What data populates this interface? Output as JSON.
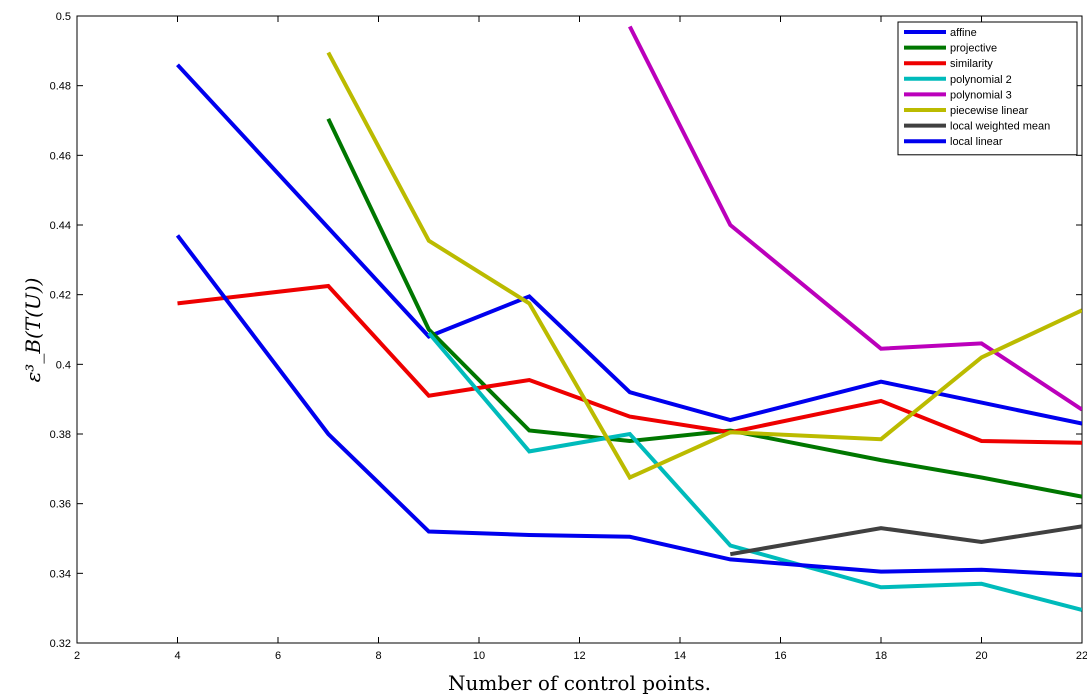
{
  "chart_data": {
    "type": "line",
    "title": "",
    "xlabel": "Number of control points.",
    "ylabel": "ε³_B(T(U))",
    "xlim": [
      2,
      22
    ],
    "ylim": [
      0.32,
      0.5
    ],
    "xticks": [
      2,
      4,
      6,
      8,
      10,
      12,
      14,
      16,
      18,
      20,
      22
    ],
    "yticks": [
      0.32,
      0.34,
      0.36,
      0.38,
      0.4,
      0.42,
      0.44,
      0.46,
      0.48,
      0.5
    ],
    "ytick_labels": [
      "0.32",
      "0.34",
      "0.36",
      "0.38",
      "0.4",
      "0.42",
      "0.44",
      "0.46",
      "0.48",
      "0.5"
    ],
    "grid": false,
    "legend_position": "top-right",
    "series": [
      {
        "name": "affine",
        "color": "#0000ee",
        "x": [
          4,
          9,
          11,
          13,
          15,
          18,
          20,
          22
        ],
        "y": [
          0.486,
          0.408,
          0.4195,
          0.392,
          0.384,
          0.395,
          0.389,
          0.383
        ]
      },
      {
        "name": "projective",
        "color": "#007700",
        "x": [
          7,
          9,
          11,
          13,
          15,
          18,
          20,
          22
        ],
        "y": [
          0.4705,
          0.41,
          0.381,
          0.378,
          0.381,
          0.3725,
          0.3675,
          0.362
        ]
      },
      {
        "name": "similarity",
        "color": "#ee0000",
        "x": [
          4,
          7,
          9,
          11,
          13,
          15,
          18,
          20,
          22
        ],
        "y": [
          0.4175,
          0.4225,
          0.391,
          0.3955,
          0.385,
          0.3805,
          0.3895,
          0.378,
          0.3775
        ]
      },
      {
        "name": "polynomial 2",
        "color": "#00bbbb",
        "x": [
          9,
          11,
          13,
          15,
          18,
          20,
          22
        ],
        "y": [
          0.409,
          0.375,
          0.38,
          0.348,
          0.336,
          0.337,
          0.3295
        ]
      },
      {
        "name": "polynomial 3",
        "color": "#bb00bb",
        "x": [
          13,
          15,
          18,
          20,
          22
        ],
        "y": [
          0.497,
          0.44,
          0.4045,
          0.406,
          0.387
        ]
      },
      {
        "name": "piecewise linear",
        "color": "#bbbb00",
        "x": [
          7,
          9,
          11,
          13,
          15,
          18,
          20,
          22
        ],
        "y": [
          0.4895,
          0.4355,
          0.4175,
          0.3675,
          0.3805,
          0.3785,
          0.402,
          0.4155
        ]
      },
      {
        "name": "local weighted mean",
        "color": "#404040",
        "x": [
          15,
          18,
          20,
          22
        ],
        "y": [
          0.3455,
          0.353,
          0.349,
          0.3535
        ]
      },
      {
        "name": "local linear",
        "color": "#0000ee",
        "x": [
          4,
          7,
          9,
          11,
          13,
          15,
          18,
          20,
          22
        ],
        "y": [
          0.437,
          0.38,
          0.352,
          0.351,
          0.3505,
          0.344,
          0.3405,
          0.341,
          0.3395
        ]
      }
    ]
  }
}
